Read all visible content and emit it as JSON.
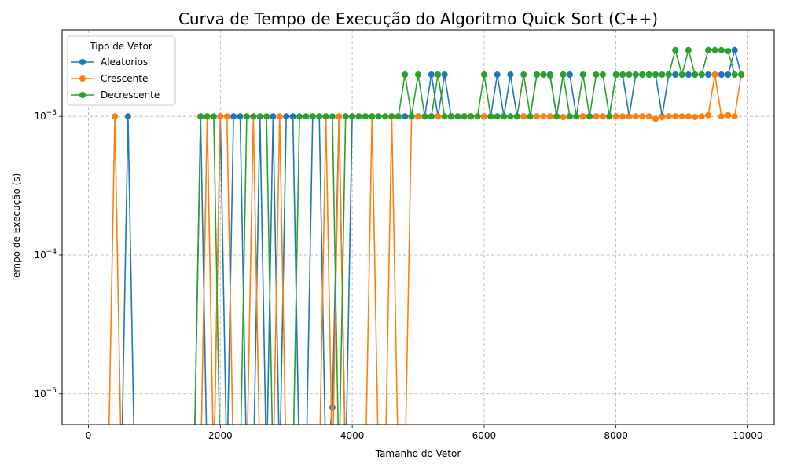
{
  "chart_data": {
    "type": "line",
    "title": "Curva de Tempo de Execução do Algoritmo Quick Sort (C++)",
    "xlabel": "Tamanho do Vetor",
    "ylabel": "Tempo de Execução (s)",
    "yscale": "log",
    "xlim": [
      -400,
      10400
    ],
    "ylim": [
      6e-06,
      0.0042
    ],
    "x_ticks": [
      {
        "value": 0,
        "label": "0"
      },
      {
        "value": 2000,
        "label": "2000"
      },
      {
        "value": 4000,
        "label": "4000"
      },
      {
        "value": 6000,
        "label": "6000"
      },
      {
        "value": 8000,
        "label": "8000"
      },
      {
        "value": 10000,
        "label": "10000"
      }
    ],
    "y_ticks": [
      {
        "value": 0.001,
        "base": "10",
        "exp": "−3"
      },
      {
        "value": 0.0001,
        "base": "10",
        "exp": "−4"
      },
      {
        "value": 1e-05,
        "base": "10",
        "exp": "−5"
      }
    ],
    "grid": true,
    "legend": {
      "title": "Tipo de Vetor",
      "position": "top-left"
    },
    "x": [
      0,
      100,
      200,
      300,
      400,
      500,
      600,
      700,
      800,
      900,
      1000,
      1100,
      1200,
      1300,
      1400,
      1500,
      1600,
      1700,
      1800,
      1900,
      2000,
      2100,
      2200,
      2300,
      2400,
      2500,
      2600,
      2700,
      2800,
      2900,
      3000,
      3100,
      3200,
      3300,
      3400,
      3500,
      3600,
      3700,
      3800,
      3900,
      4000,
      4100,
      4200,
      4300,
      4400,
      4500,
      4600,
      4700,
      4800,
      4900,
      5000,
      5100,
      5200,
      5300,
      5400,
      5500,
      5600,
      5700,
      5800,
      5900,
      6000,
      6100,
      6200,
      6300,
      6400,
      6500,
      6600,
      6700,
      6800,
      6900,
      7000,
      7100,
      7200,
      7300,
      7400,
      7500,
      7600,
      7700,
      7800,
      7900,
      8000,
      8100,
      8200,
      8300,
      8400,
      8500,
      8600,
      8700,
      8800,
      8900,
      9000,
      9100,
      9200,
      9300,
      9400,
      9500,
      9600,
      9700,
      9800,
      9900
    ],
    "series": [
      {
        "name": "Aleatorios",
        "color": "#1f77b4",
        "values": [
          0,
          0,
          0,
          0,
          0,
          0,
          0.001,
          0,
          0,
          0,
          0,
          0,
          0,
          0,
          0,
          0,
          0,
          0.001,
          0,
          0,
          0.001,
          0,
          0.001,
          0.001,
          0,
          0,
          0.001,
          0,
          0.001,
          0,
          0.001,
          0.001,
          0,
          0,
          0.001,
          0.001,
          0,
          8e-06,
          0.001,
          0,
          0.001,
          0.001,
          0.001,
          0.001,
          0.001,
          0.001,
          0.001,
          0.001,
          0.001,
          0.001,
          0.001,
          0.001,
          0.002,
          0.001,
          0.002,
          0.001,
          0.001,
          0.001,
          0.001,
          0.001,
          0.001,
          0.001,
          0.002,
          0.001,
          0.002,
          0.001,
          0.001,
          0.001,
          0.002,
          0.002,
          0.002,
          0.001,
          0.002,
          0.002,
          0.001,
          0.001,
          0.001,
          0.001,
          0.001,
          0.001,
          0.002,
          0.002,
          0.001,
          0.002,
          0.002,
          0.002,
          0.002,
          0.001,
          0.002,
          0.002,
          0.002,
          0.002,
          0.002,
          0.002,
          0.002,
          0.002,
          0.002,
          0.002,
          0.003,
          0.002
        ]
      },
      {
        "name": "Crescente",
        "color": "#ff7f0e",
        "values": [
          0,
          0,
          0,
          0,
          0.001,
          0,
          0,
          0,
          0,
          0,
          0,
          0,
          0,
          0,
          0,
          0,
          0,
          0,
          0.001,
          0,
          0.001,
          0.001,
          0,
          0,
          0,
          0.001,
          0,
          0,
          0,
          0.001,
          0,
          0,
          0,
          0,
          0,
          0,
          0.001,
          0,
          0.001,
          0,
          0,
          0,
          0,
          0.001,
          0,
          0,
          0.001,
          0,
          0,
          0.001,
          0.001,
          0.001,
          0.001,
          0.001,
          0.001,
          0.001,
          0.001,
          0.001,
          0.001,
          0.001,
          0.001,
          0.001,
          0.001,
          0.001,
          0.001,
          0.001,
          0.001,
          0.001,
          0.001,
          0.001,
          0.001,
          0.001,
          0.00099,
          0.001,
          0.001,
          0.001,
          0.001,
          0.001,
          0.001,
          0.001,
          0.001,
          0.001,
          0.001,
          0.001,
          0.001,
          0.001,
          0.00096,
          0.00099,
          0.001,
          0.001,
          0.001,
          0.001,
          0.00099,
          0.001,
          0.00102,
          0.002,
          0.001,
          0.00102,
          0.001,
          0.002
        ]
      },
      {
        "name": "Decrescente",
        "color": "#2ca02c",
        "values": [
          0,
          0,
          0,
          0,
          0,
          0,
          0,
          0,
          0,
          0,
          0,
          0,
          0,
          0,
          0,
          0,
          0,
          0.001,
          0.001,
          0.001,
          0,
          0,
          0,
          0,
          0.001,
          0.001,
          0.001,
          0.001,
          0,
          0,
          0,
          0,
          0.001,
          0.001,
          0.001,
          0.001,
          0.001,
          0.001,
          0,
          0.001,
          0.001,
          0.001,
          0.001,
          0.001,
          0.001,
          0.001,
          0.001,
          0.001,
          0.002,
          0.001,
          0.002,
          0.001,
          0.001,
          0.002,
          0.001,
          0.001,
          0.001,
          0.001,
          0.001,
          0.001,
          0.002,
          0.001,
          0.001,
          0.001,
          0.001,
          0.001,
          0.002,
          0.001,
          0.002,
          0.002,
          0.00197,
          0.001,
          0.002,
          0.001,
          0.001,
          0.002,
          0.001,
          0.002,
          0.002,
          0.001,
          0.002,
          0.002,
          0.002,
          0.002,
          0.002,
          0.002,
          0.002,
          0.002,
          0.002,
          0.003,
          0.002,
          0.003,
          0.002,
          0.002,
          0.003,
          0.003,
          0.003,
          0.00295,
          0.002,
          0.002
        ]
      }
    ]
  }
}
